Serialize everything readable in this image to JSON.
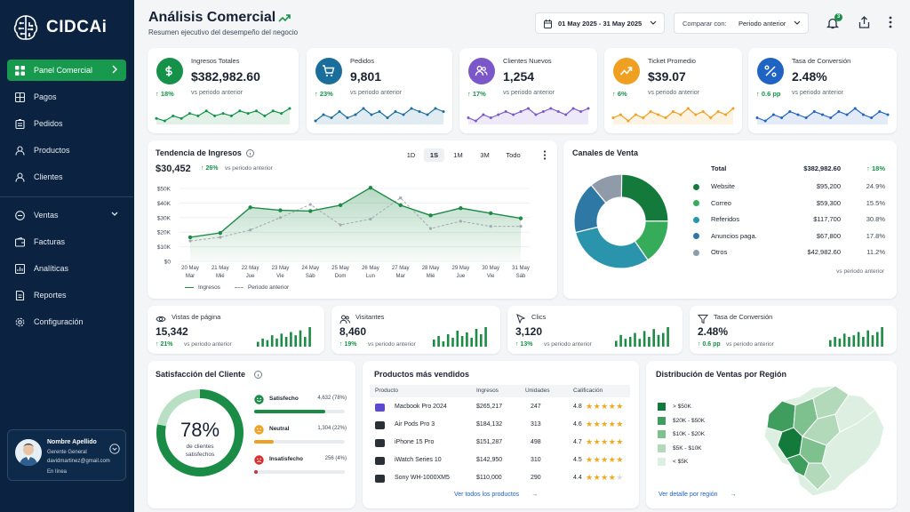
{
  "brand": {
    "name": "CIDCAi"
  },
  "sidebar": {
    "items": [
      {
        "label": "Panel Comercial",
        "icon": "grid-icon",
        "active": true
      },
      {
        "label": "Pagos",
        "icon": "table-icon"
      },
      {
        "label": "Pedidos",
        "icon": "clipboard-icon"
      },
      {
        "label": "Productos",
        "icon": "person-icon"
      },
      {
        "label": "Clientes",
        "icon": "person-icon"
      }
    ],
    "items2": [
      {
        "label": "Ventas",
        "icon": "minus-circle-icon"
      },
      {
        "label": "Facturas",
        "icon": "wallet-icon"
      },
      {
        "label": "Analíticas",
        "icon": "bar-chart-icon"
      },
      {
        "label": "Reportes",
        "icon": "report-icon"
      },
      {
        "label": "Configuración",
        "icon": "gear-icon"
      }
    ]
  },
  "user": {
    "name": "Nombre Apellido",
    "role": "Gerente General",
    "email": "davidmartinez@gmail.com",
    "status": "En línea"
  },
  "header": {
    "title": "Análisis Comercial",
    "subtitle": "Resumen ejecutivo del desempeño del negocio",
    "date_range": "01 May 2025 - 31 May 2025",
    "compare_label": "Comparar con:",
    "compare_value": "Periodo anterior",
    "notifications": "3"
  },
  "kpis": [
    {
      "label": "Ingresos Totales",
      "value": "$382,982.60",
      "delta": "18%",
      "vs": "vs periodo anterior",
      "color": "#16914a",
      "icon": "dollar-icon",
      "trend": [
        5,
        4,
        6,
        5,
        7,
        6,
        8,
        6,
        7,
        6,
        8,
        7,
        8,
        6,
        8,
        7,
        9
      ]
    },
    {
      "label": "Pedidos",
      "value": "9,801",
      "delta": "23%",
      "vs": "vs periodo anterior",
      "color": "#1b6e9c",
      "icon": "cart-icon",
      "trend": [
        4,
        6,
        5,
        7,
        5,
        6,
        8,
        6,
        7,
        5,
        7,
        6,
        8,
        7,
        6,
        8,
        7
      ]
    },
    {
      "label": "Clientes Nuevos",
      "value": "1,254",
      "delta": "17%",
      "vs": "vs periodo anterior",
      "color": "#7b57c9",
      "icon": "users-icon",
      "trend": [
        5,
        4,
        6,
        5,
        6,
        7,
        6,
        7,
        8,
        6,
        7,
        8,
        7,
        6,
        8,
        7,
        8
      ]
    },
    {
      "label": "Ticket Promedio",
      "value": "$39.07",
      "delta": "6%",
      "vs": "vs periodo anterior",
      "color": "#f0a020",
      "icon": "trend-icon",
      "trend": [
        5,
        6,
        4,
        6,
        5,
        7,
        6,
        5,
        7,
        6,
        8,
        6,
        7,
        5,
        7,
        6,
        8
      ]
    },
    {
      "label": "Tasa de Conversión",
      "value": "2.48%",
      "delta": "0.6 pp",
      "vs": "vs periodo anterior",
      "color": "#1f63c3",
      "icon": "percent-icon",
      "trend": [
        6,
        5,
        7,
        6,
        8,
        7,
        6,
        8,
        7,
        6,
        8,
        7,
        9,
        7,
        6,
        8,
        7
      ]
    }
  ],
  "revenue": {
    "title": "Tendencia de Ingresos",
    "value": "$30,452",
    "delta": "26%",
    "vs": "vs periodo anterior",
    "ranges": [
      "1D",
      "1S",
      "1M",
      "3M",
      "Todo"
    ],
    "active_range": "1S",
    "legend_current": "Ingresos",
    "legend_prev": "Periodo anterior"
  },
  "chart_data": {
    "type": "area",
    "x": [
      "20 May Mar",
      "21 May Mié",
      "22 May Jue",
      "23 May Vie",
      "24 May Sáb",
      "25 May Dom",
      "26 May Lun",
      "27 May Mar",
      "28 May Mié",
      "29 May Jue",
      "30 May Vie",
      "31 May Sáb"
    ],
    "series": [
      {
        "name": "Ingresos",
        "values": [
          16500,
          19500,
          37000,
          35000,
          34500,
          38500,
          50500,
          38500,
          31500,
          36500,
          33000,
          29500
        ]
      },
      {
        "name": "Periodo anterior",
        "values": [
          14000,
          16500,
          21500,
          30000,
          39000,
          25000,
          29000,
          43500,
          22500,
          27500,
          24000,
          24000
        ]
      }
    ],
    "ylim": [
      0,
      50000
    ],
    "yticks": [
      "$0",
      "$10K",
      "$20K",
      "$30K",
      "$40K",
      "$50K"
    ]
  },
  "channels": {
    "title": "Canales de Venta",
    "total_label": "Total",
    "total_value": "$382,982.60",
    "total_delta": "18%",
    "items": [
      {
        "name": "Website",
        "value": "$95,200",
        "pct": "24.9%",
        "color": "#137a3c",
        "share": 24.9
      },
      {
        "name": "Correo",
        "value": "$59,300",
        "pct": "15.5%",
        "color": "#36ab5a",
        "share": 15.5
      },
      {
        "name": "Referidos",
        "value": "$117,700",
        "pct": "30.8%",
        "color": "#2a94ad",
        "share": 30.8
      },
      {
        "name": "Anuncios paga.",
        "value": "$67,800",
        "pct": "17.8%",
        "color": "#2d78a4",
        "share": 17.8
      },
      {
        "name": "Otros",
        "value": "$42,982.60",
        "pct": "11.2%",
        "color": "#8f9ba8",
        "share": 11.2
      }
    ],
    "vs": "vs periodo anterior"
  },
  "mini": [
    {
      "label": "Vistas de página",
      "value": "15,342",
      "delta": "21%",
      "vs": "vs periodo anterior",
      "icon": "eye-icon",
      "bars": [
        3,
        5,
        4,
        7,
        5,
        8,
        6,
        9,
        7,
        10,
        6,
        12
      ]
    },
    {
      "label": "Visitantes",
      "value": "8,460",
      "delta": "19%",
      "vs": "vs periodo anterior",
      "icon": "users-icon",
      "bars": [
        4,
        6,
        3,
        7,
        5,
        9,
        6,
        8,
        5,
        10,
        7,
        11
      ]
    },
    {
      "label": "Clics",
      "value": "3,120",
      "delta": "13%",
      "vs": "vs periodo anterior",
      "icon": "cursor-icon",
      "bars": [
        3,
        6,
        4,
        5,
        7,
        4,
        8,
        5,
        9,
        6,
        7,
        10
      ]
    },
    {
      "label": "Tasa de Conversión",
      "value": "2.48%",
      "delta": "0.6 pp",
      "vs": "vs periodo anterior",
      "icon": "funnel-icon",
      "bars": [
        4,
        6,
        5,
        8,
        6,
        7,
        9,
        6,
        10,
        7,
        9,
        12
      ]
    }
  ],
  "satisfaction": {
    "title": "Satisfacción del Cliente",
    "pct": "78%",
    "caption": "de clientes satisfechos",
    "items": [
      {
        "label": "Satisfecho",
        "count": "4,632 (78%)",
        "value": 78,
        "color": "#1a8c46"
      },
      {
        "label": "Neutral",
        "count": "1,304 (22%)",
        "value": 22,
        "color": "#f0a020"
      },
      {
        "label": "Insatisfecho",
        "count": "256 (4%)",
        "value": 4,
        "color": "#d62e2e"
      }
    ]
  },
  "products": {
    "title": "Productos más vendidos",
    "headers": [
      "Producto",
      "Ingresos",
      "Unidades",
      "Calificación"
    ],
    "rows": [
      {
        "name": "Macbook Pro 2024",
        "rev": "$265,217",
        "units": "247",
        "rating": "4.8"
      },
      {
        "name": "Air Pods Pro 3",
        "rev": "$184,132",
        "units": "313",
        "rating": "4.6"
      },
      {
        "name": "iPhone 15 Pro",
        "rev": "$151,287",
        "units": "498",
        "rating": "4.7"
      },
      {
        "name": "iWatch Series 10",
        "rev": "$142,950",
        "units": "310",
        "rating": "4.5"
      },
      {
        "name": "Sony WH-1000XM5",
        "rev": "$110,000",
        "units": "290",
        "rating": "4.4"
      }
    ],
    "link": "Ver todos los productos"
  },
  "region": {
    "title": "Distribución de Ventas por Región",
    "legend": [
      {
        "label": "> $50K",
        "color": "#137a3c"
      },
      {
        "label": "$20K - $50K",
        "color": "#3f9d5d"
      },
      {
        "label": "$10K - $20K",
        "color": "#7fc08f"
      },
      {
        "label": "$5K - $10K",
        "color": "#b3d9bb"
      },
      {
        "label": "< $5K",
        "color": "#dcefe0"
      }
    ],
    "link": "Ver detalle por región"
  }
}
